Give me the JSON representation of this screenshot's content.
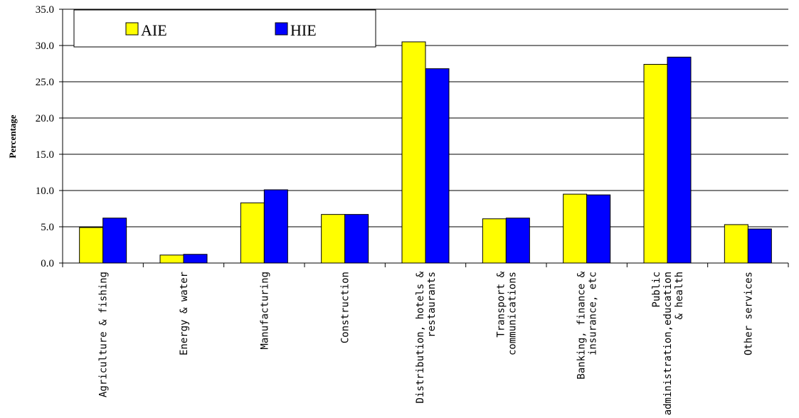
{
  "chart_data": {
    "type": "bar",
    "title": "",
    "ylabel": "Percentage",
    "xlabel": "",
    "ylim": [
      0,
      35
    ],
    "yticks": [
      "0.0",
      "5.0",
      "10.0",
      "15.0",
      "20.0",
      "25.0",
      "30.0",
      "35.0"
    ],
    "grid": true,
    "legend": "top-left",
    "categories": [
      [
        "Agriculture & fishing"
      ],
      [
        "Energy & water"
      ],
      [
        "Manufacturing"
      ],
      [
        "Construction"
      ],
      [
        "Distribution, hotels &",
        "restaurants"
      ],
      [
        "Transport &",
        "communications"
      ],
      [
        "Banking, finance &",
        "insurance, etc"
      ],
      [
        "Public",
        "administration,education",
        "& health"
      ],
      [
        "Other services"
      ]
    ],
    "series": [
      {
        "name": "AIE",
        "color": "#FFFF00",
        "values": [
          4.9,
          1.1,
          8.3,
          6.7,
          30.5,
          6.1,
          9.5,
          27.4,
          5.3
        ]
      },
      {
        "name": "HIE",
        "color": "#0000FF",
        "values": [
          6.2,
          1.2,
          10.1,
          6.7,
          26.8,
          6.2,
          9.4,
          28.4,
          4.7
        ]
      }
    ]
  }
}
